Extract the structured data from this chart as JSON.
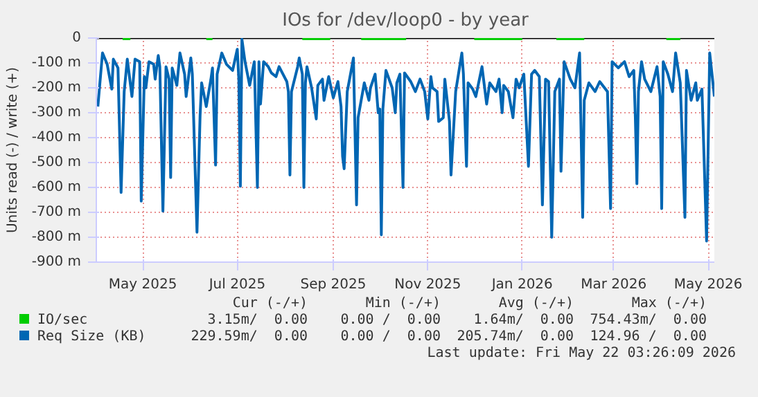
{
  "chart_data": {
    "type": "line",
    "title": "IOs for /dev/loop0 - by year",
    "ylabel": "Units read (-) / write (+)",
    "xlim": [
      "2025-04-01",
      "2026-05-05"
    ],
    "xticks": [
      {
        "value": "2025-05-01",
        "label": "May 2025"
      },
      {
        "value": "2025-07-01",
        "label": "Jul 2025"
      },
      {
        "value": "2025-09-01",
        "label": "Sep 2025"
      },
      {
        "value": "2025-11-01",
        "label": "Nov 2025"
      },
      {
        "value": "2026-01-01",
        "label": "Jan 2026"
      },
      {
        "value": "2026-03-01",
        "label": "Mar 2026"
      },
      {
        "value": "2026-05-01",
        "label": "May 2026"
      }
    ],
    "ylim": [
      -900,
      0
    ],
    "yticks": [
      {
        "value": 0,
        "label": "0"
      },
      {
        "value": -100,
        "label": "-100 m"
      },
      {
        "value": -200,
        "label": "-200 m"
      },
      {
        "value": -300,
        "label": "-300 m"
      },
      {
        "value": -400,
        "label": "-400 m"
      },
      {
        "value": -500,
        "label": "-500 m"
      },
      {
        "value": -600,
        "label": "-600 m"
      },
      {
        "value": -700,
        "label": "-700 m"
      },
      {
        "value": -800,
        "label": "-800 m"
      },
      {
        "value": -900,
        "label": "-900 m"
      }
    ],
    "grid": true,
    "legend": "bottom",
    "ref_lines": [
      {
        "axis": "y",
        "value": 0,
        "color": "#000000"
      }
    ],
    "annotations": [
      "Cur (-/+)",
      "Min (-/+)",
      "Avg (-/+)",
      "Max (-/+)",
      "3.15m/  0.00",
      "0.00 /  0.00",
      "1.64m/  0.00",
      "754.43m/  0.00",
      "229.59m/  0.00",
      "0.00 /  0.00",
      "205.74m/  0.00",
      "124.96 /  0.00",
      "Last update: Fri May 22 03:26:09 2026"
    ],
    "series": [
      {
        "name": "IO/sec",
        "color": "#00cc00",
        "x": [
          "2025-04-18",
          "2025-04-23",
          "2025-05-15",
          "2025-06-11",
          "2025-06-15",
          "2025-07-15",
          "2025-08-12",
          "2025-08-30",
          "2025-09-10",
          "2025-09-19",
          "2025-10-18",
          "2025-11-10",
          "2025-12-01",
          "2026-01-01",
          "2026-01-12",
          "2026-01-23",
          "2026-02-10",
          "2026-03-10",
          "2026-04-04",
          "2026-04-13"
        ],
        "values": [
          -3,
          -3,
          null,
          -3,
          -3,
          null,
          -3,
          -3,
          null,
          -3,
          -3,
          null,
          -3,
          -3,
          null,
          -3,
          -3,
          null,
          -3,
          -3
        ]
      },
      {
        "name": "Req Size (KB)",
        "color": "#0066b3",
        "x": [
          "2025-04-02",
          "2025-04-05",
          "2025-04-08",
          "2025-04-11",
          "2025-04-12",
          "2025-04-15",
          "2025-04-17",
          "2025-04-19",
          "2025-04-21",
          "2025-04-24",
          "2025-04-26",
          "2025-04-29",
          "2025-04-30",
          "2025-05-02",
          "2025-05-03",
          "2025-05-05",
          "2025-05-08",
          "2025-05-09",
          "2025-05-11",
          "2025-05-12",
          "2025-05-14",
          "2025-05-16",
          "2025-05-18",
          "2025-05-19",
          "2025-05-20",
          "2025-05-23",
          "2025-05-25",
          "2025-05-28",
          "2025-05-29",
          "2025-06-01",
          "2025-06-02",
          "2025-06-05",
          "2025-06-07",
          "2025-06-08",
          "2025-06-11",
          "2025-06-14",
          "2025-06-15",
          "2025-06-17",
          "2025-06-18",
          "2025-06-21",
          "2025-06-24",
          "2025-06-28",
          "2025-07-01",
          "2025-07-02",
          "2025-07-03",
          "2025-07-04",
          "2025-07-06",
          "2025-07-09",
          "2025-07-12",
          "2025-07-14",
          "2025-07-15",
          "2025-07-16",
          "2025-07-18",
          "2025-07-21",
          "2025-07-23",
          "2025-07-26",
          "2025-07-28",
          "2025-08-02",
          "2025-08-03",
          "2025-08-04",
          "2025-08-05",
          "2025-08-09",
          "2025-08-10",
          "2025-08-12",
          "2025-08-13",
          "2025-08-14",
          "2025-08-15",
          "2025-08-18",
          "2025-08-21",
          "2025-08-22",
          "2025-08-25",
          "2025-08-26",
          "2025-08-29",
          "2025-09-01",
          "2025-09-04",
          "2025-09-06",
          "2025-09-07",
          "2025-09-08",
          "2025-09-10",
          "2025-09-13",
          "2025-09-14",
          "2025-09-16",
          "2025-09-17",
          "2025-09-21",
          "2025-09-24",
          "2025-09-25",
          "2025-09-28",
          "2025-09-30",
          "2025-10-01",
          "2025-10-02",
          "2025-10-03",
          "2025-10-05",
          "2025-10-09",
          "2025-10-11",
          "2025-10-12",
          "2025-10-14",
          "2025-10-16",
          "2025-10-17",
          "2025-10-21",
          "2025-10-24",
          "2025-10-27",
          "2025-10-30",
          "2025-11-01",
          "2025-11-03",
          "2025-11-04",
          "2025-11-07",
          "2025-11-08",
          "2025-11-11",
          "2025-11-12",
          "2025-11-15",
          "2025-11-16",
          "2025-11-19",
          "2025-11-23",
          "2025-11-24",
          "2025-11-26",
          "2025-11-27",
          "2025-11-30",
          "2025-12-02",
          "2025-12-06",
          "2025-12-09",
          "2025-12-11",
          "2025-12-15",
          "2025-12-17",
          "2025-12-19",
          "2025-12-20",
          "2025-12-23",
          "2025-12-26",
          "2025-12-28",
          "2025-12-30",
          "2026-01-02",
          "2026-01-05",
          "2026-01-07",
          "2026-01-09",
          "2026-01-12",
          "2026-01-14",
          "2026-01-16",
          "2026-01-18",
          "2026-01-20",
          "2026-01-22",
          "2026-01-25",
          "2026-01-26",
          "2026-01-28",
          "2026-02-01",
          "2026-02-04",
          "2026-02-07",
          "2026-02-09",
          "2026-02-10",
          "2026-02-13",
          "2026-02-17",
          "2026-02-20",
          "2026-02-25",
          "2026-02-27",
          "2026-02-28",
          "2026-03-04",
          "2026-03-08",
          "2026-03-11",
          "2026-03-14",
          "2026-03-15",
          "2026-03-16",
          "2026-03-17",
          "2026-03-19",
          "2026-03-21",
          "2026-03-25",
          "2026-03-29",
          "2026-03-31",
          "2026-04-01",
          "2026-04-02",
          "2026-04-05",
          "2026-04-08",
          "2026-04-10",
          "2026-04-13",
          "2026-04-16",
          "2026-04-17",
          "2026-04-20",
          "2026-04-23",
          "2026-04-24",
          "2026-04-27",
          "2026-04-30",
          "2026-05-02",
          "2026-05-04",
          "2026-05-05"
        ],
        "values": [
          -275,
          -60,
          -105,
          -205,
          -85,
          -120,
          -620,
          -215,
          -85,
          -235,
          -85,
          -95,
          -655,
          -155,
          -200,
          -95,
          -105,
          -165,
          -70,
          -115,
          -695,
          -115,
          -165,
          -560,
          -120,
          -190,
          -60,
          -145,
          -235,
          -80,
          -145,
          -780,
          -310,
          -180,
          -275,
          -165,
          -120,
          -510,
          -145,
          -60,
          -105,
          -130,
          -45,
          -165,
          -595,
          -5,
          -95,
          -190,
          -95,
          -600,
          -95,
          -265,
          -95,
          -115,
          -140,
          -155,
          -115,
          -175,
          -215,
          -550,
          -215,
          -115,
          -80,
          -145,
          -600,
          -180,
          -115,
          -200,
          -325,
          -190,
          -165,
          -250,
          -155,
          -240,
          -175,
          -275,
          -475,
          -525,
          -215,
          -115,
          -80,
          -670,
          -320,
          -180,
          -250,
          -200,
          -145,
          -300,
          -285,
          -790,
          -285,
          -130,
          -200,
          -300,
          -180,
          -145,
          -600,
          -140,
          -175,
          -215,
          -165,
          -215,
          -325,
          -155,
          -200,
          -215,
          -335,
          -320,
          -165,
          -335,
          -550,
          -215,
          -60,
          -145,
          -515,
          -180,
          -205,
          -235,
          -115,
          -265,
          -180,
          -215,
          -165,
          -300,
          -190,
          -215,
          -320,
          -165,
          -200,
          -145,
          -515,
          -145,
          -130,
          -155,
          -670,
          -165,
          -175,
          -800,
          -215,
          -165,
          -535,
          -95,
          -165,
          -200,
          -60,
          -720,
          -250,
          -180,
          -215,
          -175,
          -215,
          -685,
          -95,
          -120,
          -95,
          -155,
          -130,
          -320,
          -585,
          -215,
          -95,
          -165,
          -215,
          -115,
          -235,
          -685,
          -95,
          -145,
          -215,
          -60,
          -180,
          -720,
          -130,
          -250,
          -180,
          -250,
          -205,
          -815,
          -60,
          -175,
          -235
        ]
      }
    ]
  }
}
